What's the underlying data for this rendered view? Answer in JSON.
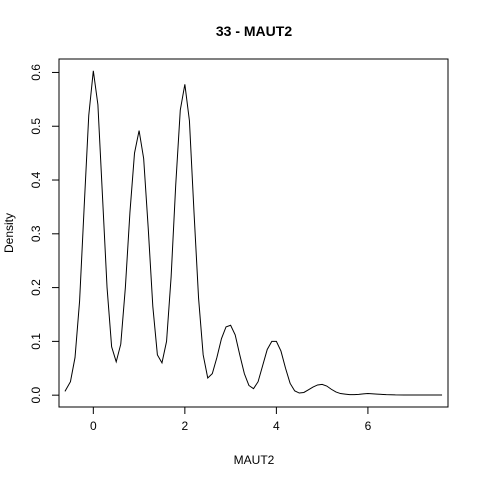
{
  "chart_data": {
    "type": "line",
    "title": "33 - MAUT2",
    "xlabel": "MAUT2",
    "ylabel": "Density",
    "xlim": [
      -0.75,
      7.75
    ],
    "ylim": [
      -0.022,
      0.625
    ],
    "x_ticks": [
      0,
      2,
      4,
      6
    ],
    "y_ticks": [
      0.0,
      0.1,
      0.2,
      0.3,
      0.4,
      0.5,
      0.6
    ],
    "x_tick_labels": [
      "0",
      "2",
      "4",
      "6"
    ],
    "y_tick_labels": [
      "0.0",
      "0.1",
      "0.2",
      "0.3",
      "0.4",
      "0.5",
      "0.6"
    ],
    "grid": false,
    "legend": "none",
    "line_color": "#000000",
    "series": [
      {
        "x": [
          -0.62,
          -0.5,
          -0.4,
          -0.3,
          -0.2,
          -0.1,
          0.0,
          0.1,
          0.2,
          0.3,
          0.4,
          0.5,
          0.6,
          0.7,
          0.8,
          0.9,
          1.0,
          1.1,
          1.2,
          1.3,
          1.4,
          1.5,
          1.6,
          1.7,
          1.8,
          1.9,
          2.0,
          2.1,
          2.2,
          2.3,
          2.4,
          2.5,
          2.6,
          2.7,
          2.8,
          2.9,
          3.0,
          3.1,
          3.2,
          3.3,
          3.4,
          3.5,
          3.6,
          3.7,
          3.8,
          3.9,
          4.0,
          4.1,
          4.2,
          4.3,
          4.4,
          4.5,
          4.6,
          4.7,
          4.8,
          4.9,
          5.0,
          5.1,
          5.2,
          5.3,
          5.4,
          5.5,
          5.6,
          5.7,
          5.8,
          5.9,
          6.0,
          6.2,
          6.4,
          6.6,
          6.8,
          7.0,
          7.2,
          7.4,
          7.62
        ],
        "y": [
          0.007,
          0.025,
          0.07,
          0.175,
          0.35,
          0.52,
          0.603,
          0.54,
          0.37,
          0.2,
          0.09,
          0.062,
          0.095,
          0.2,
          0.34,
          0.45,
          0.492,
          0.44,
          0.31,
          0.165,
          0.075,
          0.06,
          0.1,
          0.22,
          0.39,
          0.53,
          0.578,
          0.51,
          0.34,
          0.18,
          0.075,
          0.032,
          0.04,
          0.07,
          0.105,
          0.127,
          0.13,
          0.112,
          0.075,
          0.04,
          0.018,
          0.012,
          0.025,
          0.055,
          0.085,
          0.1,
          0.1,
          0.082,
          0.05,
          0.022,
          0.008,
          0.004,
          0.005,
          0.01,
          0.015,
          0.019,
          0.02,
          0.017,
          0.011,
          0.006,
          0.003,
          0.002,
          0.001,
          0.001,
          0.0015,
          0.0025,
          0.003,
          0.002,
          0.001,
          0.0005,
          0.0004,
          0.0003,
          0.0002,
          0.0002,
          0.0002
        ]
      }
    ]
  }
}
